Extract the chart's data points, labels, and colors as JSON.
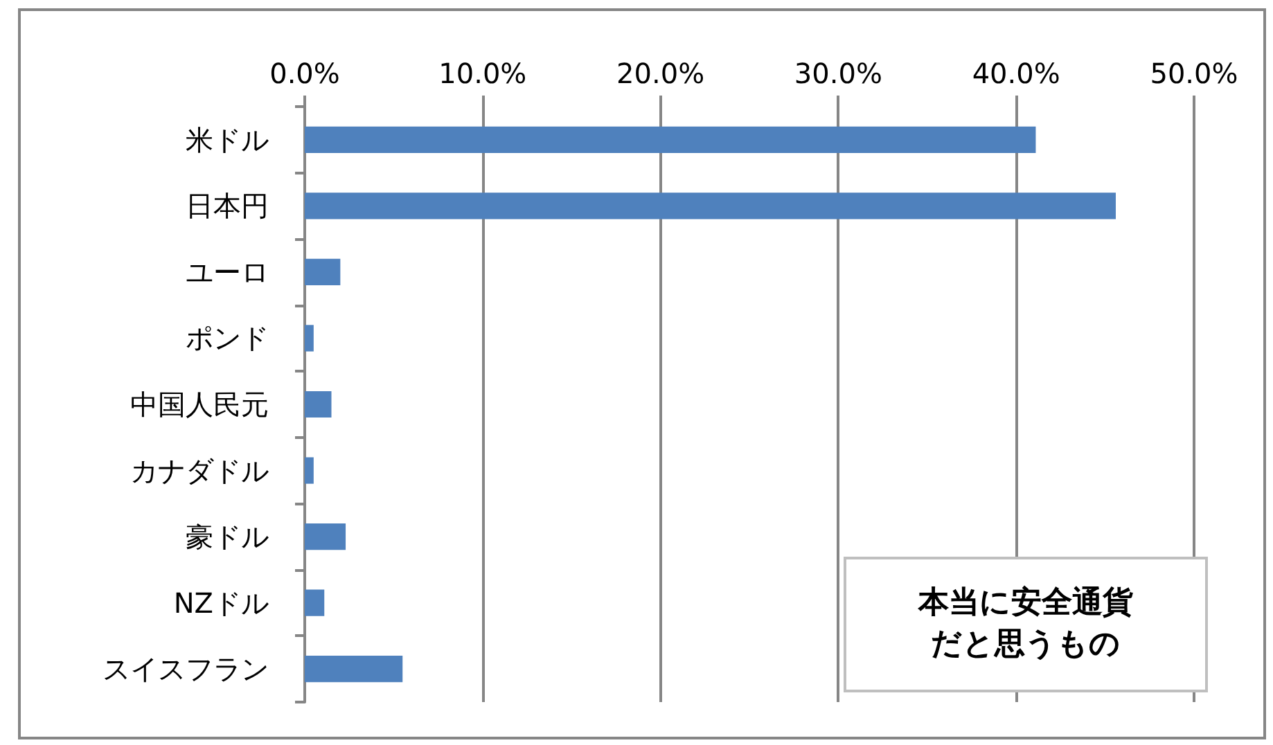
{
  "chart_data": {
    "type": "bar",
    "orientation": "horizontal",
    "categories": [
      "米ドル",
      "日本円",
      "ユーロ",
      "ポンド",
      "中国人民元",
      "カナダドル",
      "豪ドル",
      "NZドル",
      "スイスフラン"
    ],
    "values": [
      41.1,
      45.6,
      2.0,
      0.5,
      1.5,
      0.5,
      2.3,
      1.1,
      5.5
    ],
    "color": "#4f81bd",
    "xlim": [
      0,
      50
    ],
    "xticks": [
      {
        "value": 0,
        "label": "0.0%"
      },
      {
        "value": 10,
        "label": "10.0%"
      },
      {
        "value": 20,
        "label": "20.0%"
      },
      {
        "value": 30,
        "label": "30.0%"
      },
      {
        "value": 40,
        "label": "40.0%"
      },
      {
        "value": 50,
        "label": "50.0%"
      }
    ],
    "grid": "x",
    "annotations": [
      "本当に安全通貨だと思うもの"
    ]
  }
}
